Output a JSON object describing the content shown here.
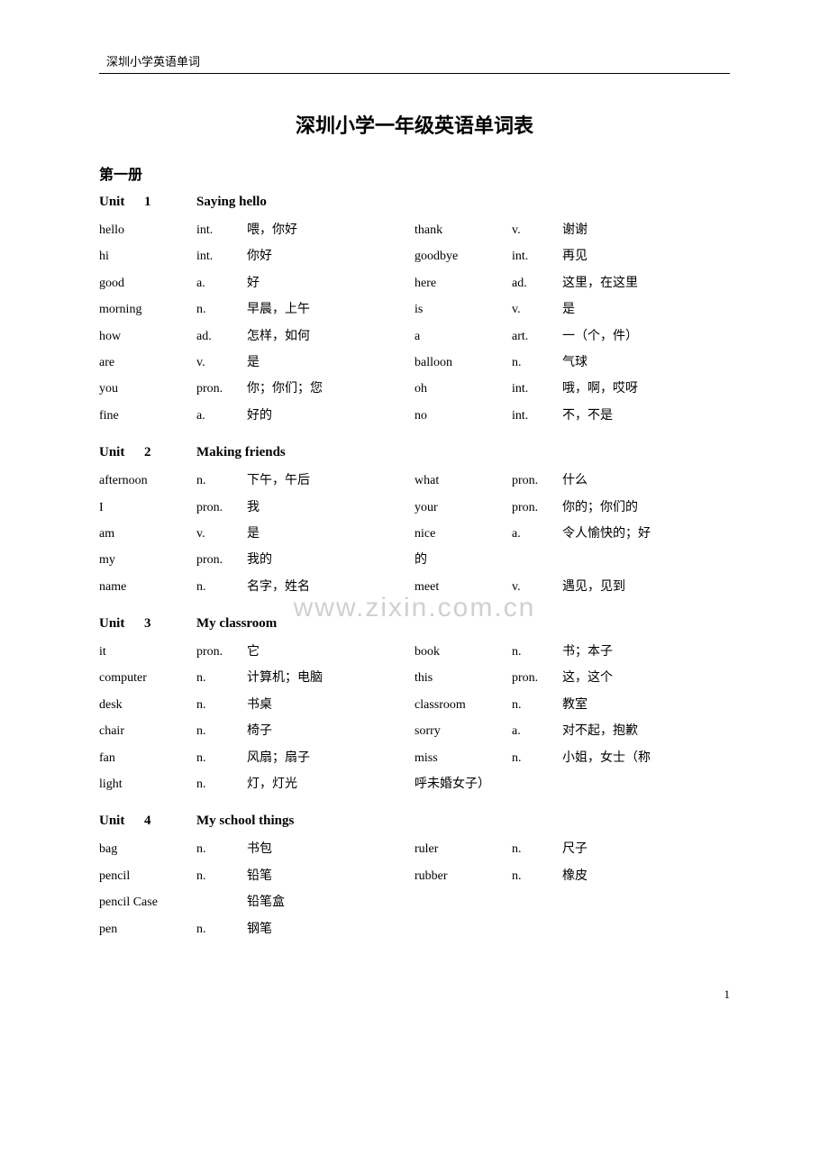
{
  "header": "深圳小学英语单词",
  "title": "深圳小学一年级英语单词表",
  "book": "第一册",
  "watermark": "www.zixin.com.cn",
  "pageNumber": "1",
  "units": [
    {
      "label": "Unit",
      "num": "1",
      "title": "Saying hello",
      "left": [
        {
          "w": "hello",
          "p": "int.",
          "m": "喂，你好"
        },
        {
          "w": "hi",
          "p": "int.",
          "m": "你好"
        },
        {
          "w": "good",
          "p": "a.",
          "m": "好"
        },
        {
          "w": "morning",
          "p": "n.",
          "m": "早晨，上午"
        },
        {
          "w": "how",
          "p": "ad.",
          "m": "怎样，如何"
        },
        {
          "w": "are",
          "p": "v.",
          "m": "是"
        },
        {
          "w": "you",
          "p": "pron.",
          "m": "你；你们；您"
        },
        {
          "w": "fine",
          "p": "a.",
          "m": "好的"
        }
      ],
      "right": [
        {
          "w": "thank",
          "p": "v.",
          "m": "谢谢"
        },
        {
          "w": "goodbye",
          "p": "int.",
          "m": "再见"
        },
        {
          "w": "here",
          "p": "ad.",
          "m": "这里，在这里"
        },
        {
          "w": "is",
          "p": "v.",
          "m": "是"
        },
        {
          "w": "a",
          "p": "art.",
          "m": "一（个，件）"
        },
        {
          "w": "balloon",
          "p": "n.",
          "m": "气球"
        },
        {
          "w": "oh",
          "p": "int.",
          "m": "哦，啊，哎呀"
        },
        {
          "w": "no",
          "p": "int.",
          "m": "不，不是"
        }
      ]
    },
    {
      "label": "Unit",
      "num": "2",
      "title": "Making friends",
      "left": [
        {
          "w": "afternoon",
          "p": "n.",
          "m": "下午，午后"
        },
        {
          "w": "I",
          "p": "pron.",
          "m": "我"
        },
        {
          "w": "am",
          "p": "v.",
          "m": "是"
        },
        {
          "w": "my",
          "p": "pron.",
          "m": "我的"
        },
        {
          "w": "name",
          "p": "n.",
          "m": "名字，姓名"
        }
      ],
      "right": [
        {
          "w": "what",
          "p": "pron.",
          "m": "什么"
        },
        {
          "w": "your",
          "p": "pron.",
          "m": "你的；你们的"
        },
        {
          "w": "nice",
          "p": "a.",
          "m": "令人愉快的；好"
        },
        {
          "w": "的",
          "p": "",
          "m": ""
        },
        {
          "w": "meet",
          "p": "v.",
          "m": "遇见，见到"
        }
      ]
    },
    {
      "label": "Unit",
      "num": "3",
      "title": "My classroom",
      "left": [
        {
          "w": "it",
          "p": "pron.",
          "m": "它"
        },
        {
          "w": "computer",
          "p": "n.",
          "m": "计算机；电脑"
        },
        {
          "w": "desk",
          "p": "n.",
          "m": "书桌"
        },
        {
          "w": "chair",
          "p": "n.",
          "m": "椅子"
        },
        {
          "w": "fan",
          "p": "n.",
          "m": "风扇；扇子"
        },
        {
          "w": "light",
          "p": "n.",
          "m": "灯，灯光"
        }
      ],
      "right": [
        {
          "w": "book",
          "p": "n.",
          "m": "书；本子"
        },
        {
          "w": "this",
          "p": "pron.",
          "m": "这，这个"
        },
        {
          "w": "classroom",
          "p": "n.",
          "m": "教室"
        },
        {
          "w": "sorry",
          "p": "a.",
          "m": "对不起，抱歉"
        },
        {
          "w": "miss",
          "p": "n.",
          "m": "小姐，女士（称"
        },
        {
          "w": "呼未婚女子）",
          "p": "",
          "m": ""
        }
      ]
    },
    {
      "label": "Unit",
      "num": "4",
      "title": "My school things",
      "left": [
        {
          "w": "bag",
          "p": "n.",
          "m": "书包"
        },
        {
          "w": "pencil",
          "p": "n.",
          "m": "铅笔"
        },
        {
          "w": "pencil Case",
          "p": "",
          "m": "铅笔盒"
        },
        {
          "w": "pen",
          "p": "n.",
          "m": "钢笔"
        }
      ],
      "right": [
        {
          "w": "ruler",
          "p": "n.",
          "m": "尺子"
        },
        {
          "w": "rubber",
          "p": "n.",
          "m": "橡皮"
        }
      ]
    }
  ]
}
